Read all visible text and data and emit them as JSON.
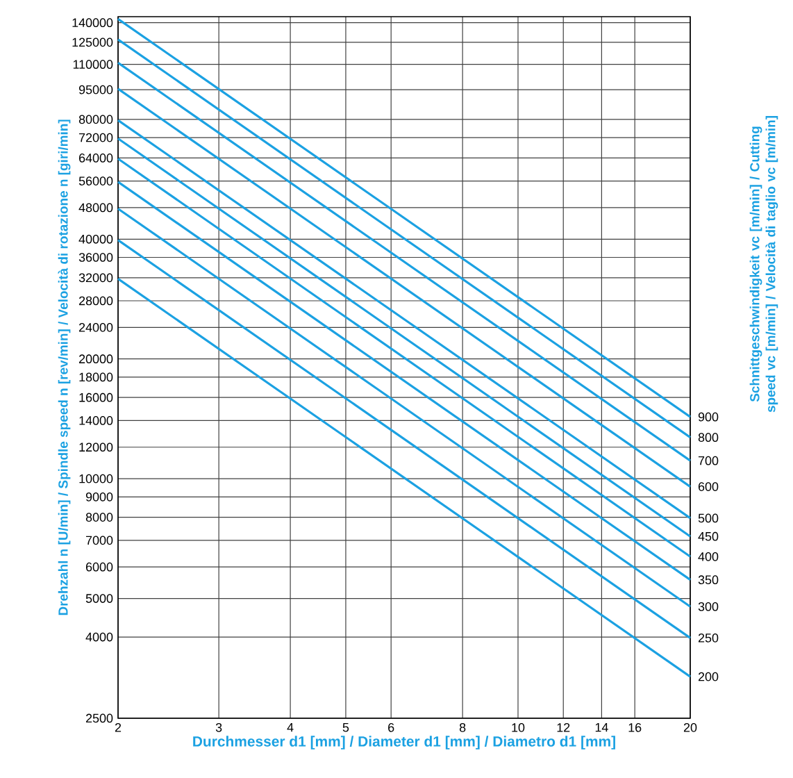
{
  "chart_data": {
    "type": "line",
    "xlabel": "Durchmesser d1 [mm] / Diameter d1 [mm] / Diametro d1 [mm]",
    "ylabel": "Drehzahl n [U/min] / Spindle speed n [rev/min] / Velocità di rotazione n [giri/min]",
    "y2label": "Schnittgeschwindigkeit vc [m/min] / Cutting speed vc [m/min] / Velocità di taglio vc [m/min]",
    "log": "xy",
    "grid": true,
    "marker": "none",
    "x": [
      2,
      20
    ],
    "xlim": [
      2,
      20
    ],
    "xticks": [
      2,
      3,
      4,
      5,
      6,
      8,
      10,
      12,
      14,
      16,
      20
    ],
    "ylim": [
      2500,
      145000
    ],
    "yticks": [
      2500,
      4000,
      5000,
      6000,
      7000,
      8000,
      9000,
      10000,
      12000,
      14000,
      16000,
      18000,
      20000,
      24000,
      28000,
      32000,
      36000,
      40000,
      48000,
      56000,
      64000,
      72000,
      80000,
      95000,
      110000,
      125000,
      140000
    ],
    "series": [
      {
        "name": "200",
        "color": "#1ba1e2",
        "values": [
          31800,
          3180
        ]
      },
      {
        "name": "250",
        "color": "#1ba1e2",
        "values": [
          39800,
          3980
        ]
      },
      {
        "name": "300",
        "color": "#1ba1e2",
        "values": [
          47700,
          4770
        ]
      },
      {
        "name": "350",
        "color": "#1ba1e2",
        "values": [
          55700,
          5570
        ]
      },
      {
        "name": "400",
        "color": "#1ba1e2",
        "values": [
          63700,
          6370
        ]
      },
      {
        "name": "450",
        "color": "#1ba1e2",
        "values": [
          71600,
          7160
        ]
      },
      {
        "name": "500",
        "color": "#1ba1e2",
        "values": [
          79600,
          7960
        ]
      },
      {
        "name": "600",
        "color": "#1ba1e2",
        "values": [
          95500,
          9550
        ]
      },
      {
        "name": "700",
        "color": "#1ba1e2",
        "values": [
          111000,
          11100
        ]
      },
      {
        "name": "800",
        "color": "#1ba1e2",
        "values": [
          127000,
          12700
        ]
      },
      {
        "name": "900",
        "color": "#1ba1e2",
        "values": [
          143000,
          14300
        ]
      }
    ]
  }
}
